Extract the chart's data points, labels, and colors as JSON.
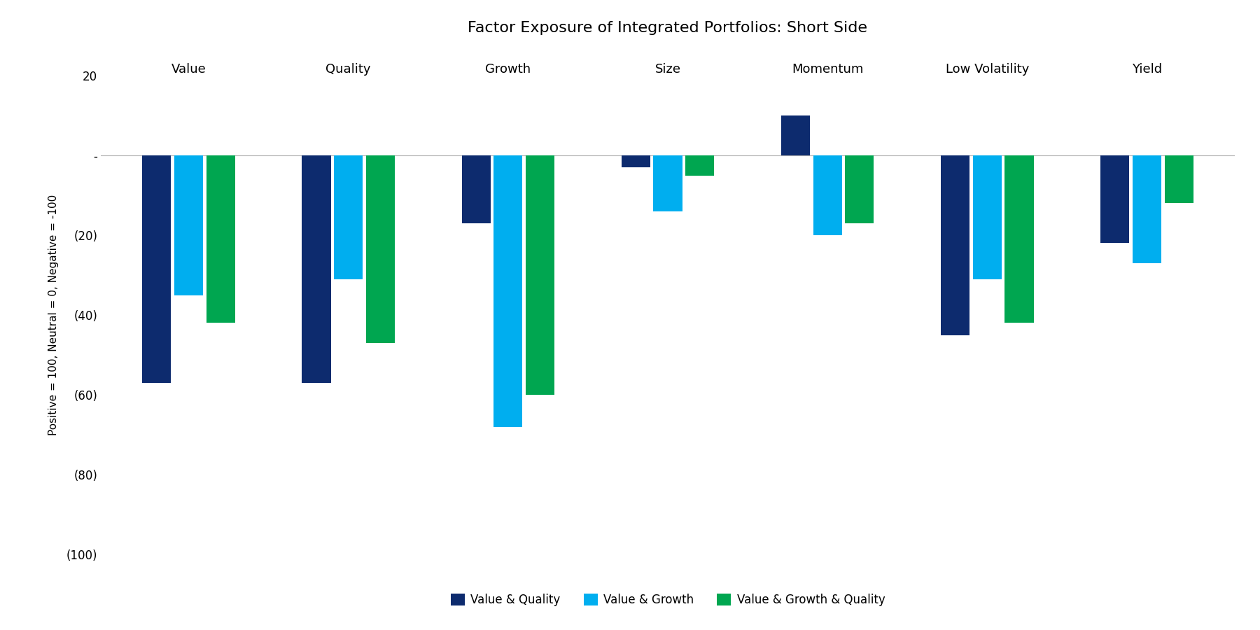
{
  "title": "Factor Exposure of Integrated Portfolios: Short Side",
  "ylabel": "Positive = 100, Neutral = 0, Negative = -100",
  "categories": [
    "Value",
    "Quality",
    "Growth",
    "Size",
    "Momentum",
    "Low Volatility",
    "Yield"
  ],
  "series": {
    "Value & Quality": [
      -57,
      -57,
      -17,
      -3,
      10,
      -45,
      -22
    ],
    "Value & Growth": [
      -35,
      -31,
      -68,
      -14,
      -20,
      -31,
      -27
    ],
    "Value & Growth & Quality": [
      -42,
      -47,
      -60,
      -5,
      -17,
      -42,
      -12
    ]
  },
  "colors": {
    "Value & Quality": "#0d2b6e",
    "Value & Growth": "#00aeef",
    "Value & Growth & Quality": "#00a650"
  },
  "ylim": [
    -100,
    20
  ],
  "yticks": [
    20,
    0,
    -20,
    -40,
    -60,
    -80,
    -100
  ],
  "ytick_labels": [
    "20",
    "-",
    "(20)",
    "(40)",
    "(60)",
    "(80)",
    "(100)"
  ],
  "background_color": "#ffffff",
  "bar_width": 0.18,
  "bar_gap": 0.02,
  "title_fontsize": 16,
  "cat_label_fontsize": 13,
  "axis_label_fontsize": 11,
  "tick_fontsize": 12,
  "legend_fontsize": 12
}
